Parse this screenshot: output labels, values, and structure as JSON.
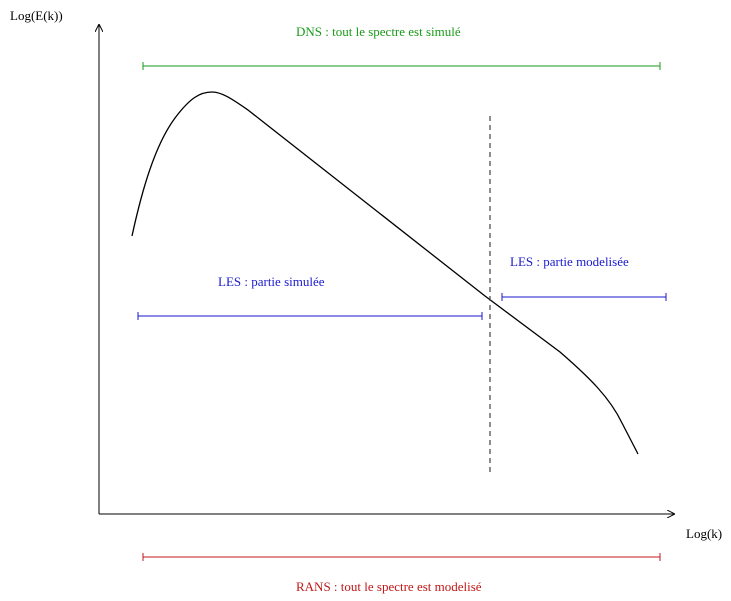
{
  "axes": {
    "y_label": "Log(E(k))",
    "x_label": "Log(k)"
  },
  "ranges": {
    "dns": {
      "label": "DNS : tout le spectre est simulé",
      "color": "#1a9a1a"
    },
    "les_simulated": {
      "label": "LES : partie simulée",
      "color": "#1a1acc"
    },
    "les_modeled": {
      "label": "LES : partie modelisée",
      "color": "#1a1acc"
    },
    "rans": {
      "label": "RANS : tout le spectre est modelisé",
      "color": "#c01818"
    }
  },
  "colors": {
    "axis": "#000000",
    "curve": "#000000",
    "cutoff": "#444444"
  }
}
